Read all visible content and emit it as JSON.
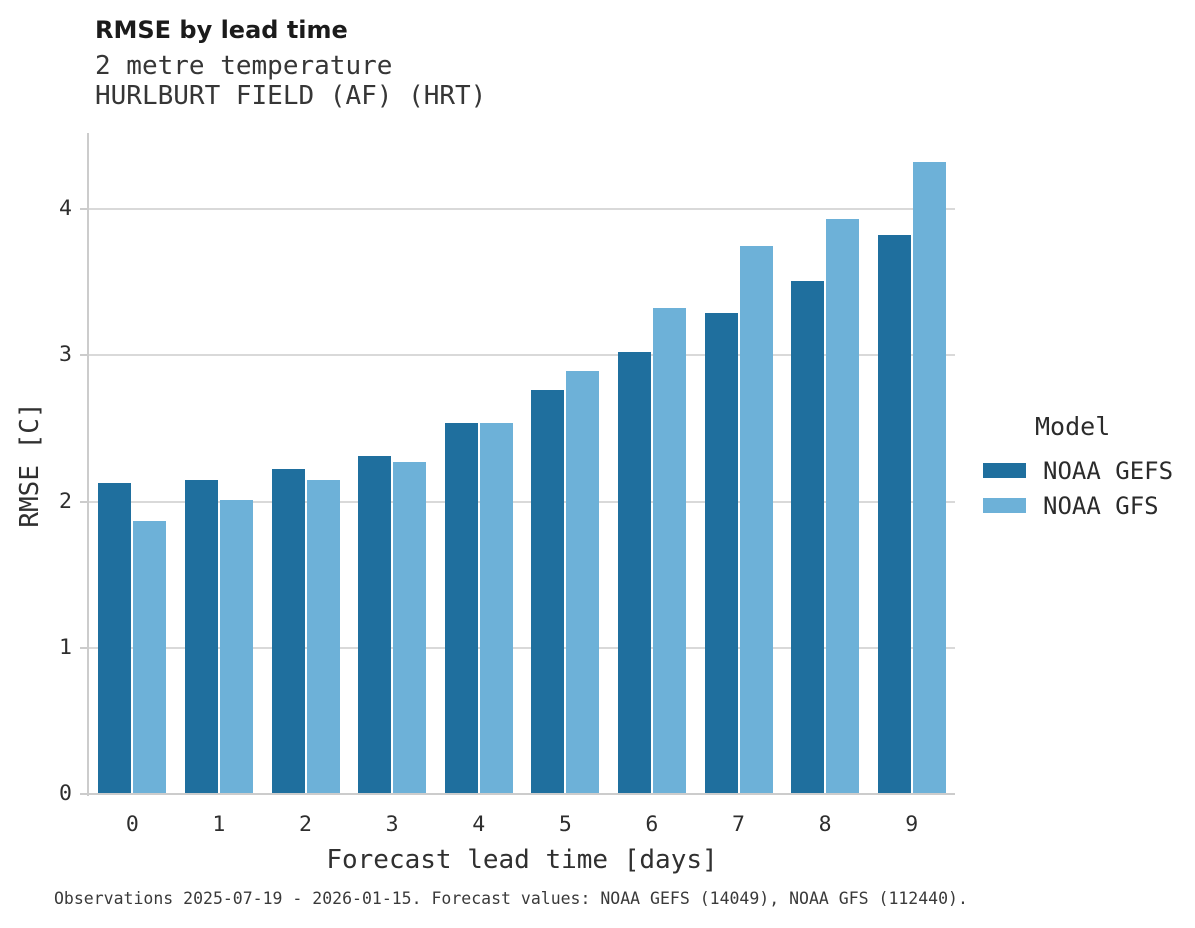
{
  "header": {
    "title": "RMSE by lead time",
    "subtitle_line1": "2 metre temperature",
    "subtitle_line2": "HURLBURT FIELD (AF) (HRT)"
  },
  "chart_data": {
    "type": "bar",
    "title": "RMSE by lead time",
    "subtitle": [
      "2 metre temperature",
      "HURLBURT FIELD (AF) (HRT)"
    ],
    "categories": [
      "0",
      "1",
      "2",
      "3",
      "4",
      "5",
      "6",
      "7",
      "8",
      "9"
    ],
    "series": [
      {
        "name": "NOAA GEFS",
        "color": "#1f6f9e",
        "values": [
          2.13,
          2.15,
          2.22,
          2.31,
          2.54,
          2.76,
          3.02,
          3.29,
          3.51,
          3.82
        ]
      },
      {
        "name": "NOAA GFS",
        "color": "#6db1d8",
        "values": [
          1.87,
          2.01,
          2.15,
          2.27,
          2.54,
          2.89,
          3.32,
          3.75,
          3.93,
          4.32
        ]
      }
    ],
    "xlabel": "Forecast lead time [days]",
    "ylabel": "RMSE [C]",
    "ylim": [
      0,
      4.52
    ],
    "yticks": [
      0,
      1,
      2,
      3,
      4
    ],
    "grid": "horizontal-only",
    "legend_position": "right",
    "grid_color": "#d9d9d9",
    "axis_color": "#cccccc"
  },
  "legend": {
    "title": "Model"
  },
  "footer": {
    "caption": "Observations 2025-07-19 - 2026-01-15. Forecast values: NOAA GEFS (14049), NOAA GFS (112440)."
  }
}
